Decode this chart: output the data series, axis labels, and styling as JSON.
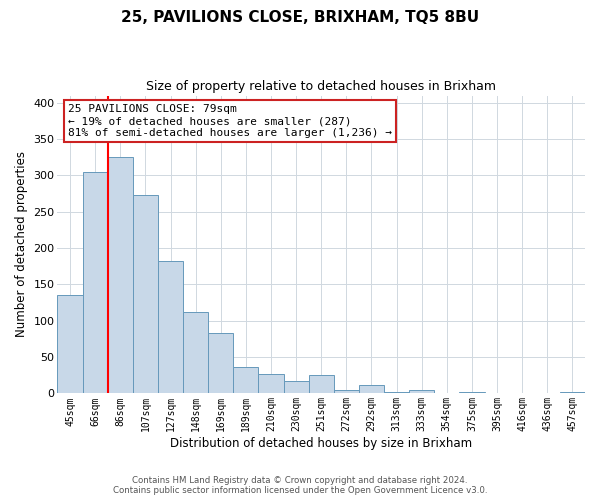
{
  "title": "25, PAVILIONS CLOSE, BRIXHAM, TQ5 8BU",
  "subtitle": "Size of property relative to detached houses in Brixham",
  "xlabel": "Distribution of detached houses by size in Brixham",
  "ylabel": "Number of detached properties",
  "footer_line1": "Contains HM Land Registry data © Crown copyright and database right 2024.",
  "footer_line2": "Contains public sector information licensed under the Open Government Licence v3.0.",
  "categories": [
    "45sqm",
    "66sqm",
    "86sqm",
    "107sqm",
    "127sqm",
    "148sqm",
    "169sqm",
    "189sqm",
    "210sqm",
    "230sqm",
    "251sqm",
    "272sqm",
    "292sqm",
    "313sqm",
    "333sqm",
    "354sqm",
    "375sqm",
    "395sqm",
    "416sqm",
    "436sqm",
    "457sqm"
  ],
  "values": [
    135,
    305,
    325,
    273,
    182,
    112,
    83,
    37,
    27,
    17,
    25,
    5,
    11,
    2,
    5,
    1,
    2,
    0,
    1,
    0,
    2
  ],
  "bar_color": "#c8d8e8",
  "bar_edge_color": "#6699bb",
  "vline_x": 1.5,
  "vline_color": "red",
  "ylim": [
    0,
    410
  ],
  "annotation_text_line1": "25 PAVILIONS CLOSE: 79sqm",
  "annotation_text_line2": "← 19% of detached houses are smaller (287)",
  "annotation_text_line3": "81% of semi-detached houses are larger (1,236) →",
  "grid_color": "#d0d8e0",
  "background_color": "#ffffff",
  "yticks": [
    0,
    50,
    100,
    150,
    200,
    250,
    300,
    350,
    400
  ]
}
